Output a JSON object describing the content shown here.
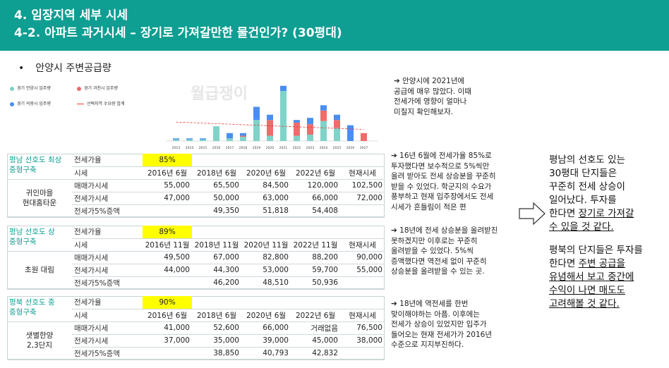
{
  "header": {
    "title1": "4. 임장지역 세부 시세",
    "title2": "4-2. 아파트 과거시세 – 장기로 가져갈만한 물건인가? (30평대)"
  },
  "bullet": {
    "dot": "•",
    "text": "안양시 주변공급량"
  },
  "chart": {
    "watermark": "월급쟁이",
    "legend": {
      "anyang": "경기 안양시 입주량",
      "gwacheon": "경기 과천시 입주량",
      "uiwang": "경기 의왕시 입주량",
      "demand": "선택지역 수요량 합계"
    },
    "colors": {
      "anyang": "#7fd3c8",
      "gwacheon": "#f06b6b",
      "uiwang": "#4a8ef0",
      "demand": "#e53935"
    }
  },
  "chart_data": {
    "type": "bar",
    "categories": [
      "2013",
      "2014",
      "2015",
      "2016",
      "2017",
      "2018",
      "2019",
      "2020",
      "2021",
      "2022",
      "2023",
      "2024",
      "2025",
      "2026",
      "2027"
    ],
    "series": [
      {
        "name": "경기 안양시 입주량",
        "values": [
          3,
          3,
          3,
          28,
          5,
          8,
          40,
          10,
          95,
          10,
          12,
          38,
          25,
          0,
          0
        ]
      },
      {
        "name": "경기 과천시 입주량",
        "values": [
          0,
          0,
          0,
          0,
          0,
          2,
          0,
          30,
          0,
          25,
          20,
          20,
          15,
          0,
          15
        ]
      },
      {
        "name": "경기 의왕시 입주량",
        "values": [
          2,
          2,
          2,
          0,
          10,
          5,
          25,
          10,
          10,
          5,
          12,
          10,
          10,
          30,
          0
        ]
      },
      {
        "name": "선택지역 수요량 합계",
        "values": [
          36,
          35,
          34,
          33,
          32,
          31,
          30,
          29,
          28,
          27,
          26,
          25,
          24,
          23,
          22
        ]
      }
    ],
    "stacked": true
  },
  "notes": {
    "n1": [
      "➔ 안양시에 2021년에",
      "공급에 매우 많았다. 이때",
      "전세가에 영향이 얼마나",
      "미칠지 확인해보자."
    ],
    "n2": [
      "➔ 16년 6월에 전세가율 85%로",
      "투자했다면 보수적으로 5%씩만",
      "올려 받아도 전세 상승분을 꾸준히",
      "받을 수 있었다. 학군지의 수요가",
      "풍부하고 현재 입주장에서도 전세",
      "시세가 흔들림이 적은 편"
    ],
    "n3": [
      "➔ 18년에 전세 상승분을 올려받진",
      "못하겠지만 이후로는 꾸준히",
      "올려받을 수 있었다. 5%씩",
      "증액했다면 역전세 없이 꾸준히",
      "상승분을 올려받을 수 있는 곳."
    ],
    "n4": [
      "➔ 18년에 역전세를 한번",
      "맞이해야하는 아픔. 이후에는",
      "전세가 상승이 있었지만 입주가",
      "들어오는 현재 전세가가 2016년",
      "수준으로 지지부진하다."
    ]
  },
  "tables": [
    {
      "category": [
        "평남 선호도 최상",
        "중형구축"
      ],
      "apt": [
        "귀인마을",
        "현대홈타운"
      ],
      "ratio_label": "전세가율",
      "ratio": "85%",
      "period_label": "시세",
      "periods": [
        "2016년 6월",
        "2018년 6월",
        "2020년 6월",
        "2022년 6월",
        "현재시세"
      ],
      "sale_label": "매매가시세",
      "sale": [
        "55,000",
        "65,500",
        "84,500",
        "120,000",
        "102,500"
      ],
      "jeonse_label": "전세가시세",
      "jeonse": [
        "47,000",
        "50,000",
        "63,000",
        "66,000",
        "72,000"
      ],
      "inc_label": "전세가5%증액",
      "inc": [
        "",
        "49,350",
        "51,818",
        "54,408",
        ""
      ]
    },
    {
      "category": [
        "평남 선호도 상",
        "중형구축"
      ],
      "apt": [
        "초원 대림"
      ],
      "ratio_label": "전세가율",
      "ratio": "89%",
      "period_label": "시세",
      "periods": [
        "2016년 11월",
        "2018년 11월",
        "2020년 11월",
        "2022년 11월",
        "현재시세"
      ],
      "sale_label": "매매가시세",
      "sale": [
        "49,500",
        "67,000",
        "82,800",
        "88,200",
        "90,000"
      ],
      "jeonse_label": "전세가시세",
      "jeonse": [
        "44,000",
        "44,300",
        "53,000",
        "59,700",
        "55,000"
      ],
      "inc_label": "전세가5%증액",
      "inc": [
        "",
        "46,200",
        "48,510",
        "50,936",
        ""
      ]
    },
    {
      "category": [
        "평북 선호도 중",
        "중형구축"
      ],
      "apt": [
        "샛별한양",
        "2,3단지"
      ],
      "ratio_label": "전세가율",
      "ratio": "90%",
      "period_label": "시세",
      "periods": [
        "2016년 6월",
        "2018년 6월",
        "2020년 6월",
        "2022년 6월",
        "현재시세"
      ],
      "sale_label": "매매가시세",
      "sale": [
        "41,000",
        "52,600",
        "66,000",
        "거래없음",
        "76,500"
      ],
      "jeonse_label": "전세가시세",
      "jeonse": [
        "37,000",
        "35,000",
        "39,000",
        "45,000",
        "38,000"
      ],
      "inc_label": "전세가5%증액",
      "inc": [
        "",
        "38,850",
        "40,793",
        "42,832",
        ""
      ]
    }
  ],
  "summary": {
    "p1_plain": [
      "평남의 선호도 있는",
      "30평대 단지들은",
      "꾸준히 전세 상승이",
      "일어났다. 투자를",
      "한다면 "
    ],
    "p1_ul1": "장기로 가져갈",
    "p1_ul2": "수 있을 것 같다.",
    "p2_l1": "평북의 단지들은 투자를",
    "p2_l2a": "한다면 ",
    "p2_l2b": "주변 공급을",
    "p2_ul": [
      "유념해서 보고 중간에",
      "수익이 나면 매도도",
      "고려해볼 것 같다."
    ]
  }
}
